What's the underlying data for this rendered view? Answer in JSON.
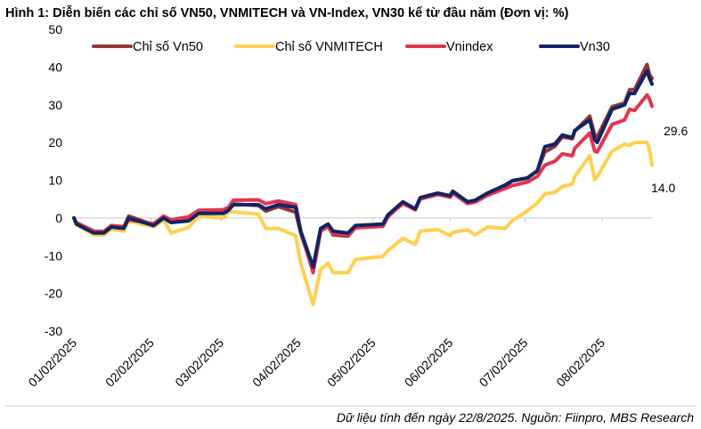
{
  "chart_data": {
    "type": "line",
    "title": "Hình 1: Diễn biến các chỉ số VN50, VNMITECH và VN-Index, VN30 kể từ đầu năm (Đơn vị: %)",
    "xlabel": "",
    "ylabel": "",
    "ylim": [
      -30,
      50
    ],
    "yticks": [
      50,
      40,
      30,
      20,
      10,
      0,
      -10,
      -20,
      -30
    ],
    "xlim": [
      "2025-01-02",
      "2025-08-22"
    ],
    "xticks": [
      {
        "date": "2025-01-02",
        "label": "01/02/2025"
      },
      {
        "date": "2025-02-02",
        "label": "02/02/2025"
      },
      {
        "date": "2025-03-02",
        "label": "03/02/2025"
      },
      {
        "date": "2025-04-02",
        "label": "04/02/2025"
      },
      {
        "date": "2025-05-02",
        "label": "05/02/2025"
      },
      {
        "date": "2025-06-02",
        "label": "06/02/2025"
      },
      {
        "date": "2025-07-02",
        "label": "07/02/2025"
      },
      {
        "date": "2025-08-02",
        "label": "08/02/2025"
      }
    ],
    "grid": false,
    "legend_position": "top",
    "x": [
      "2025-01-02",
      "2025-01-03",
      "2025-01-10",
      "2025-01-14",
      "2025-01-17",
      "2025-01-22",
      "2025-01-24",
      "2025-02-03",
      "2025-02-07",
      "2025-02-10",
      "2025-02-17",
      "2025-02-21",
      "2025-03-03",
      "2025-03-05",
      "2025-03-07",
      "2025-03-17",
      "2025-03-20",
      "2025-03-25",
      "2025-04-01",
      "2025-04-03",
      "2025-04-08",
      "2025-04-11",
      "2025-04-14",
      "2025-04-16",
      "2025-04-22",
      "2025-04-25",
      "2025-05-06",
      "2025-05-08",
      "2025-05-14",
      "2025-05-19",
      "2025-05-21",
      "2025-05-28",
      "2025-06-02",
      "2025-06-03",
      "2025-06-09",
      "2025-06-12",
      "2025-06-17",
      "2025-06-24",
      "2025-06-27",
      "2025-07-03",
      "2025-07-07",
      "2025-07-10",
      "2025-07-14",
      "2025-07-17",
      "2025-07-21",
      "2025-07-22",
      "2025-07-28",
      "2025-07-30",
      "2025-07-31",
      "2025-08-06",
      "2025-08-11",
      "2025-08-13",
      "2025-08-15",
      "2025-08-20",
      "2025-08-21",
      "2025-08-22"
    ],
    "series": [
      {
        "name": "Chỉ số Vn50",
        "color": "#943634",
        "values": [
          0,
          -1.5,
          -3.8,
          -3.8,
          -2.4,
          -2.6,
          0.5,
          -1.8,
          0,
          -1,
          -0.5,
          1.2,
          1.3,
          2,
          3.7,
          3.3,
          1.8,
          3,
          1.5,
          -4,
          -14,
          -3.5,
          -2.2,
          -4.5,
          -4.8,
          -2.6,
          -2.2,
          0.3,
          4,
          2.2,
          5.2,
          6.4,
          5.8,
          6.9,
          4,
          4.5,
          6.4,
          8.6,
          9.8,
          10.6,
          12.5,
          17.5,
          19,
          21.5,
          21,
          23,
          27,
          22,
          21.5,
          29.5,
          30.5,
          34,
          34,
          40.7,
          38,
          37
        ]
      },
      {
        "name": "Chỉ số VNMITECH",
        "color": "#FFD050",
        "values": [
          0,
          -1.8,
          -4.5,
          -4.5,
          -3,
          -3.5,
          -0.8,
          -2.4,
          -0.5,
          -4,
          -2.5,
          0.5,
          0,
          1.6,
          1.6,
          1,
          -2.8,
          -2.8,
          -4.7,
          -12,
          -23,
          -13.7,
          -12,
          -14.5,
          -14.5,
          -11,
          -10.2,
          -8.7,
          -5.4,
          -7,
          -3.5,
          -3.1,
          -4.7,
          -3.8,
          -3.2,
          -4.5,
          -2.4,
          -2.8,
          -0.7,
          1.9,
          4,
          6.4,
          6.8,
          8.3,
          9,
          11,
          16.5,
          10.2,
          11,
          17.7,
          19.6,
          19.2,
          20,
          20,
          18.2,
          14.0
        ],
        "end_label": "14.0"
      },
      {
        "name": "Vnindex",
        "color": "#E2344F",
        "values": [
          0,
          -1.2,
          -3.5,
          -3.6,
          -2,
          -2.3,
          -0.5,
          -1.5,
          0.5,
          -0.5,
          0.3,
          2,
          2.2,
          2.8,
          4.7,
          4.8,
          3.8,
          4.5,
          3.5,
          -3.5,
          -14.5,
          -3.5,
          -2.2,
          -4.2,
          -4.5,
          -2.6,
          -2.2,
          0.5,
          3.8,
          2.2,
          5,
          6.2,
          5.5,
          6.6,
          3.8,
          4.2,
          6,
          7.8,
          8.6,
          9.5,
          11,
          14,
          15,
          17,
          16.5,
          18.5,
          22.5,
          17.7,
          17.5,
          24.8,
          26,
          28.8,
          28.5,
          32.6,
          31.5,
          29.6
        ],
        "end_label": "29.6"
      },
      {
        "name": "Vn30",
        "color": "#112466",
        "values": [
          0,
          -1.6,
          -4,
          -4,
          -2.4,
          -2.8,
          0,
          -2,
          0,
          -1.2,
          -0.8,
          1.2,
          1.2,
          2,
          3.5,
          3.5,
          2.4,
          3.5,
          2.8,
          -3.5,
          -13,
          -2.8,
          -1.6,
          -3.5,
          -4,
          -2,
          -1.6,
          0.8,
          4.3,
          2.4,
          5.4,
          6.6,
          5.9,
          7.1,
          4.3,
          4.7,
          6.6,
          8.7,
          9.9,
          10.6,
          12.5,
          18.9,
          19.6,
          22,
          21.3,
          23.2,
          26,
          20.8,
          20,
          28.8,
          30,
          33,
          33,
          39,
          37,
          35.5
        ]
      }
    ]
  },
  "footer": {
    "source": "Dữ liệu tính đến ngày 22/8/2025. Nguồn: Fiinpro, MBS Research"
  }
}
